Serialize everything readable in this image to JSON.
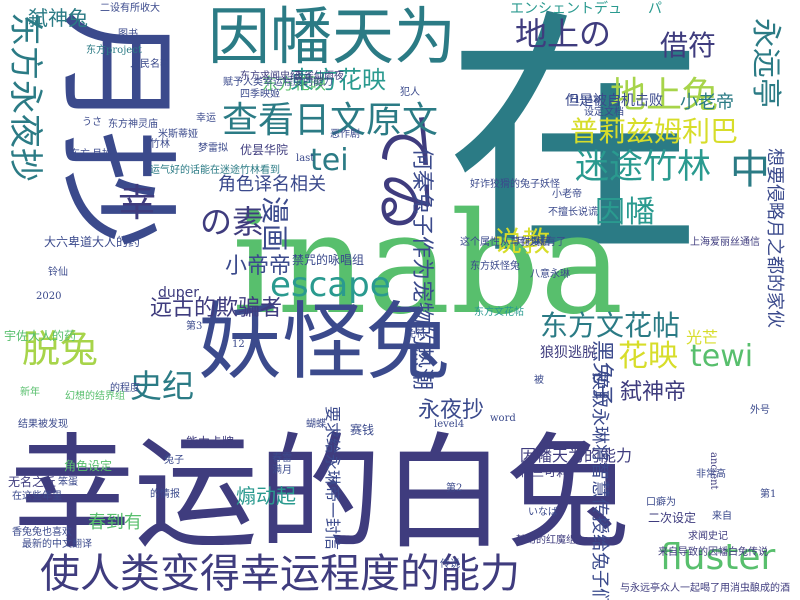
{
  "palette": {
    "dark": "#3f3c7e",
    "navy": "#3b4a8c",
    "teal": "#2b7b85",
    "cyan": "#2a9a8f",
    "green": "#58bf6d",
    "lime": "#a7d44a",
    "yellow": "#d7dd2a",
    "purple": "#4a2f6b"
  },
  "words": [
    "在",
    "月抄",
    "inaba",
    "幸运的白兔",
    "妖怪兔",
    "因幡天为",
    "使人类变得幸运程度的能力",
    "てゐ",
    "查看日文原文",
    "东方永夜抄",
    "迷途竹林",
    "地上兔",
    "地上の",
    "借符",
    "東方花映",
    "普莉兹姆利巴",
    "永远亭",
    "escape",
    "东方文花帖",
    "脱兔",
    "tewi",
    "花映",
    "fluster",
    "因幡",
    "漫画",
    "の素",
    "说教",
    "史纪",
    "中",
    "tei",
    "幸",
    "小老帝",
    "弑神兔",
    "弑神帝",
    "永夜抄",
    "小帝帝",
    "角色译名相关",
    "远古的欺骗者",
    "黑兔子",
    "想要侵略月之都的家伙",
    "因幡天为的能力",
    "煽动起",
    "春到有",
    "狼狈逃脱",
    "何秦兔子作为宠物的热潮",
    "要求给永琳帝一封信",
    "换取永琳将智慧传授给兔子们",
    "但是被自机击败",
    "エンシェントデュ",
    "パ",
    "东方花映",
    "duper",
    "光芒",
    "赋予人类幸运程度的能力",
    "东方project",
    "上海爱丽丝通信",
    "禁咒的咏唱组",
    "运气好的话能在迷途竹林看到",
    "幻想的结界组",
    "无名之丘",
    "二设有所收大",
    "人民名著",
    "四季映姬",
    "优昙华院",
    "东方求闻史纪",
    "夜雀仙雨夜",
    "梦雷拟",
    "米斯蒂娅",
    "能力卡牌",
    "春雷",
    "蝴蝶",
    "二次设定",
    "梅兰可莉",
    "赛钱",
    "来自导致的因幡白兔传说",
    "与永远亭众人一起喝了用消虫酿成的酒",
    "求闻史记",
    "梦幻的红魔组",
    "ancient",
    "word",
    "level4",
    "口癖为",
    "いなば",
    "外号",
    "第1",
    "第3",
    "宇佐大人的药",
    "大六卑道大人的药",
    "设定文档",
    "月抄就有了",
    "这个属性从草作漫画",
    "好诈狡猾的兔子妖怪",
    "东方文花帖",
    "东方妖怪兔",
    "角色设定",
    "铃仙",
    "满月",
    "八意永琳",
    "不擅长说谎",
    "小老帝",
    "2020",
    "71948",
    "的程度",
    "被",
    "犯人",
    "东方",
    "月抄",
    "东方神灵庙",
    "12",
    "新年",
    "最新的中文翻译",
    "在这些年里",
    "香兔兔也喜欢",
    "竹林",
    "兔子",
    "传说",
    "幸运",
    "恶作剧",
    "last",
    "笨蛋",
    "うさ",
    "图书",
    "免符",
    "第2",
    "的情报",
    "结果被发现",
    "来自",
    "非常高"
  ]
}
